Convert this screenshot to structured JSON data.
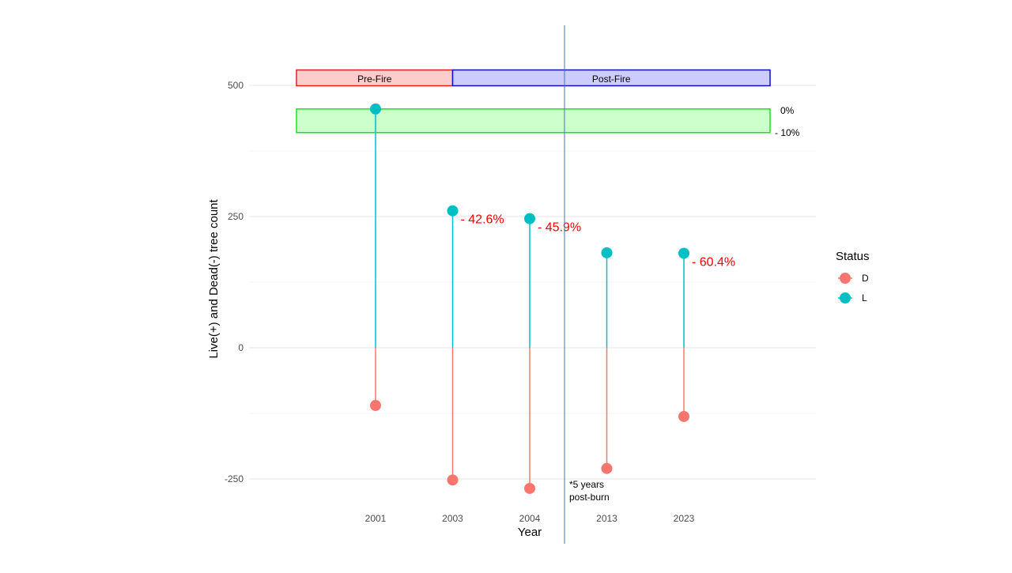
{
  "chart_data": {
    "type": "lollipop",
    "xlabel": "Year",
    "ylabel": "Live(+) and Dead(-) tree count",
    "categories": [
      "2001",
      "2003",
      "2004",
      "2013",
      "2023"
    ],
    "yticks": [
      -250,
      0,
      250,
      500
    ],
    "ylim": [
      -300,
      600
    ],
    "grid": true,
    "series": [
      {
        "name": "D",
        "color": "#F8766D",
        "values": [
          -110,
          -252,
          -268,
          -230,
          -131
        ]
      },
      {
        "name": "L",
        "color": "#00BFC4",
        "values": [
          455,
          261,
          246,
          181,
          180
        ]
      }
    ],
    "legend": {
      "title": "Status",
      "position": "right",
      "entries": [
        "D",
        "L"
      ]
    },
    "phase_bars": [
      {
        "label": "Pre-Fire",
        "fill": "#FFCCCC",
        "stroke": "#E02020",
        "from_year": "2001",
        "to_year": "2003"
      },
      {
        "label": "Post-Fire",
        "fill": "#CCCCFF",
        "stroke": "#1010C0",
        "from_year": "2003",
        "to_year": "2023"
      }
    ],
    "reference_band": {
      "fill": "#CCFFCC",
      "stroke": "#22DD22",
      "top_label": "0%",
      "bottom_label": "- 10%",
      "y_top": 455,
      "y_bottom": 410
    },
    "percent_labels": [
      {
        "category": "2003",
        "text": "- 42.6%"
      },
      {
        "category": "2004",
        "text": "- 45.9%"
      },
      {
        "category": "2023",
        "text": "- 60.4%"
      }
    ],
    "vline": {
      "color": "#4472C4",
      "label_lines": [
        "*5 years",
        "post-burn"
      ]
    }
  }
}
